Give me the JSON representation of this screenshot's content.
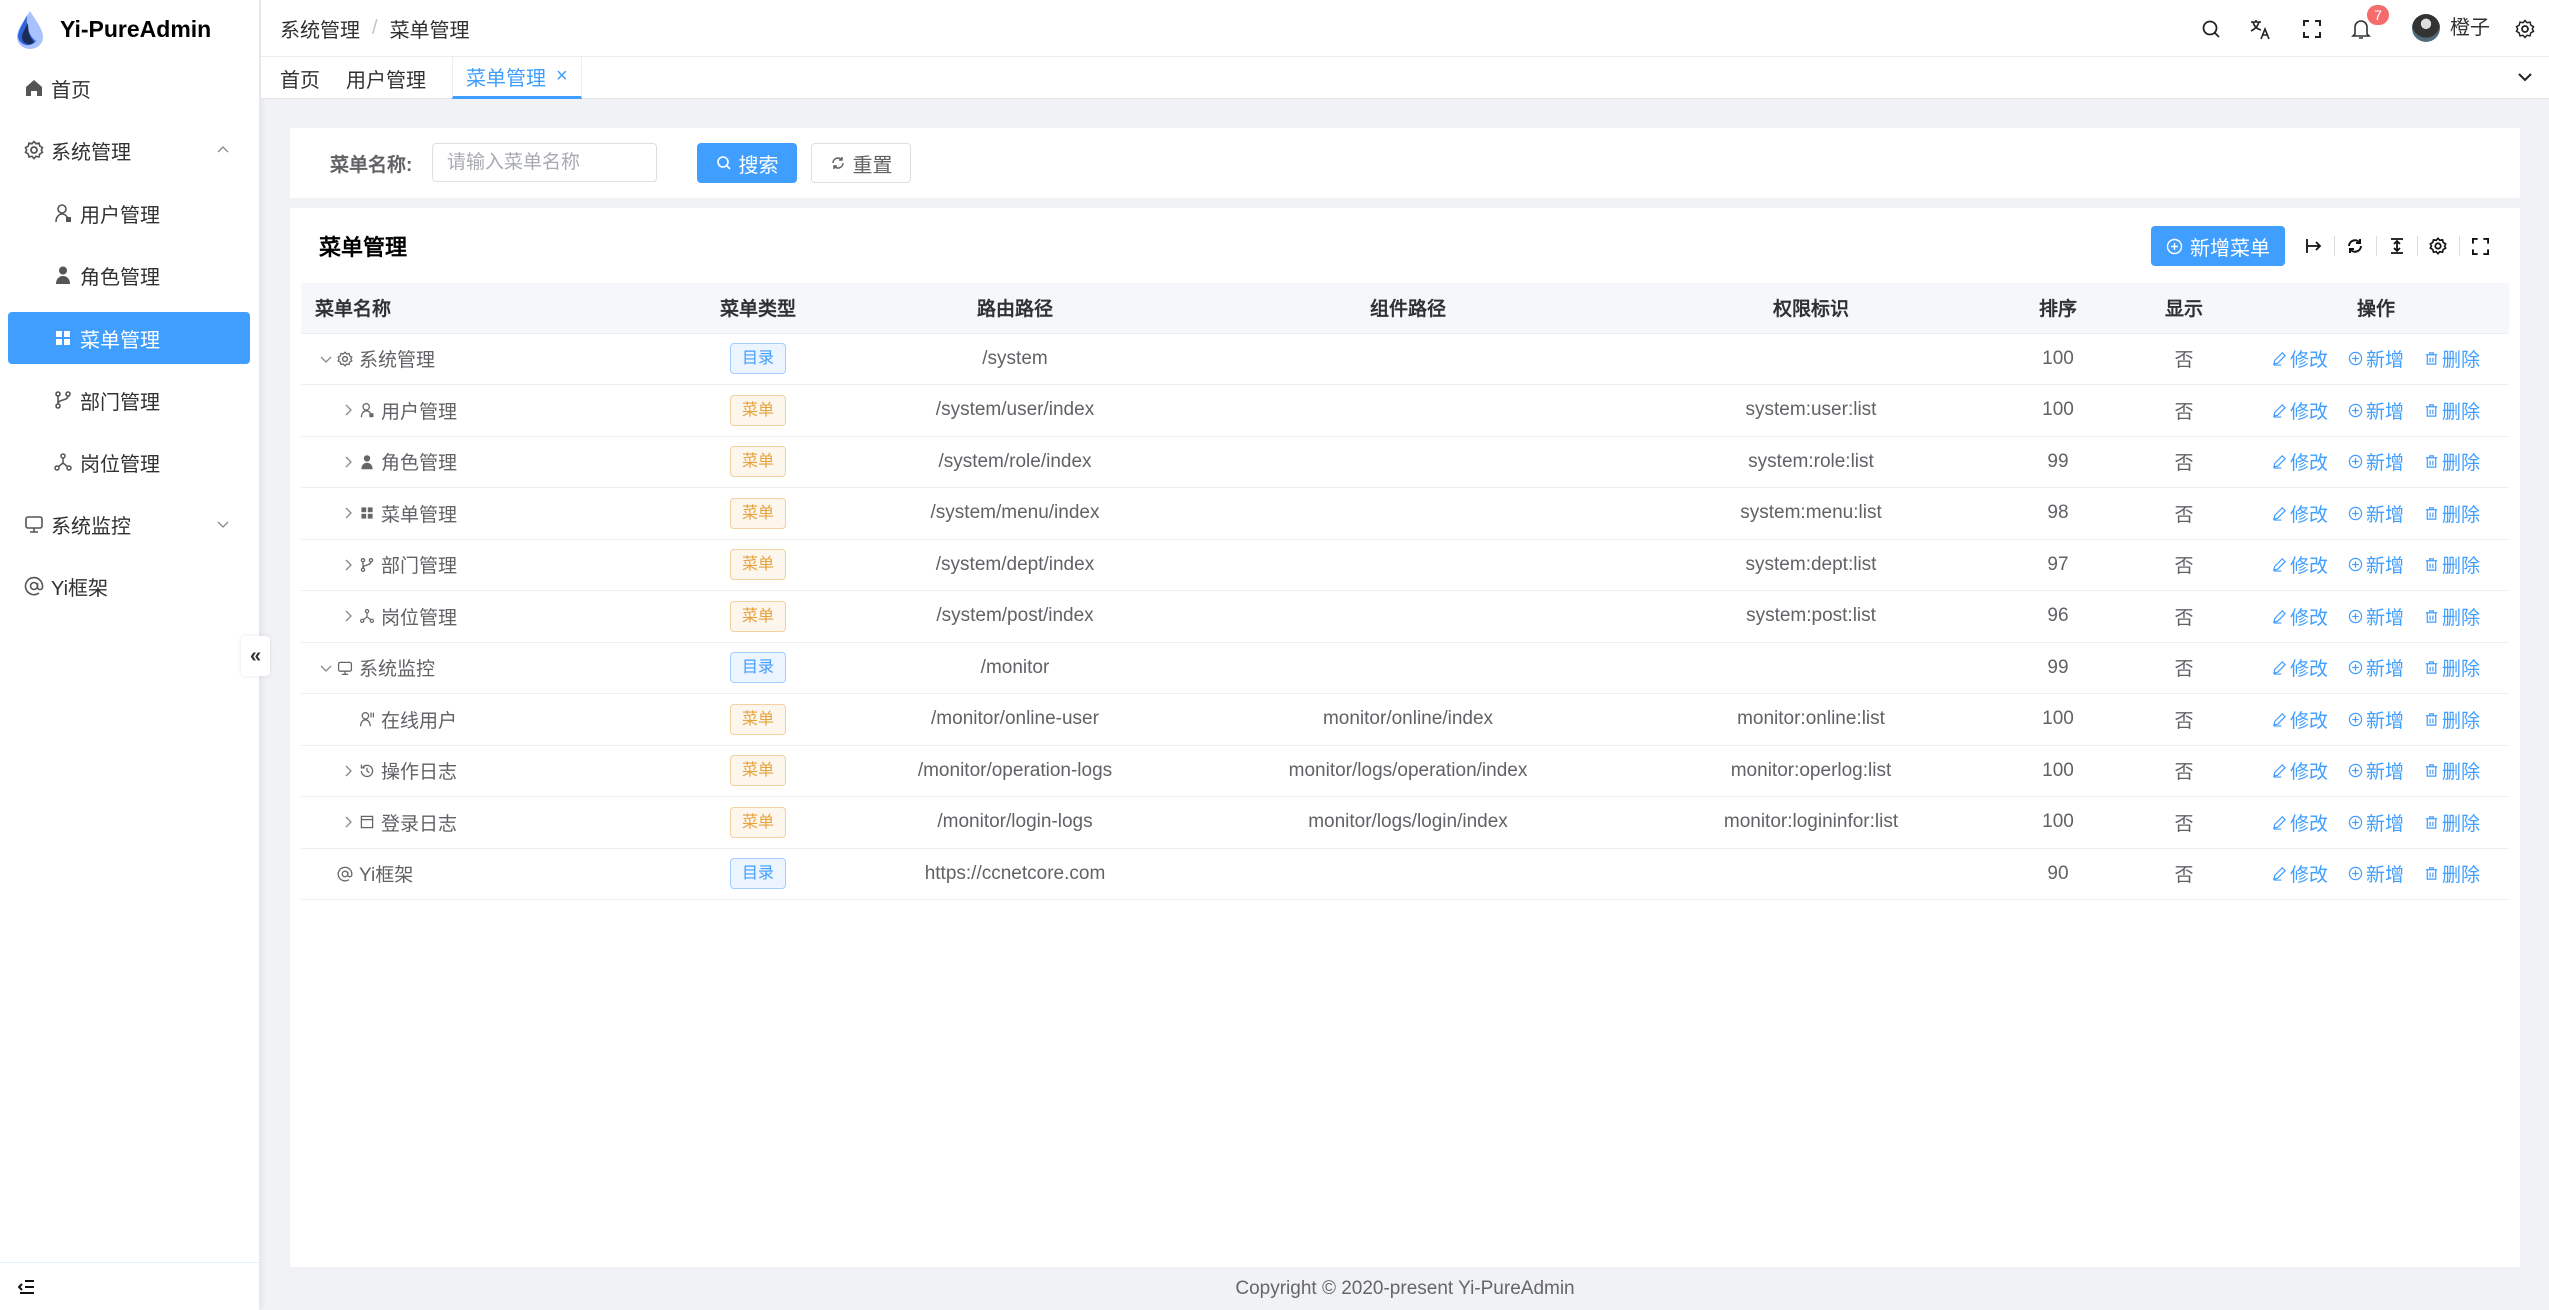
{
  "app": {
    "title": "Yi-PureAdmin",
    "accent": "#409eff"
  },
  "sidebar": {
    "items": [
      {
        "label": "首页",
        "icon": "home-icon",
        "level": 0
      },
      {
        "label": "系统管理",
        "icon": "gear-icon",
        "level": 0,
        "expanded": true
      },
      {
        "label": "用户管理",
        "icon": "user-icon",
        "level": 1
      },
      {
        "label": "角色管理",
        "icon": "role-icon",
        "level": 1
      },
      {
        "label": "菜单管理",
        "icon": "grid-icon",
        "level": 1,
        "active": true
      },
      {
        "label": "部门管理",
        "icon": "branch-icon",
        "level": 1
      },
      {
        "label": "岗位管理",
        "icon": "network-icon",
        "level": 1
      },
      {
        "label": "系统监控",
        "icon": "monitor-icon",
        "level": 0,
        "expanded": false
      },
      {
        "label": "Yi框架",
        "icon": "at-icon",
        "level": 0
      }
    ],
    "collapse_label": "«"
  },
  "header": {
    "breadcrumb": [
      "系统管理",
      "菜单管理"
    ],
    "breadcrumb_sep": "/",
    "notification_count": "7",
    "username": "橙子"
  },
  "tabs": [
    {
      "label": "首页"
    },
    {
      "label": "用户管理"
    },
    {
      "label": "菜单管理",
      "active": true,
      "close": "×"
    }
  ],
  "search": {
    "label": "菜单名称:",
    "placeholder": "请输入菜单名称",
    "value": "",
    "search_label": "搜索",
    "reset_label": "重置"
  },
  "table_card": {
    "title": "菜单管理",
    "add_label": "新增菜单"
  },
  "table": {
    "columns": [
      "菜单名称",
      "菜单类型",
      "路由路径",
      "组件路径",
      "权限标识",
      "排序",
      "显示",
      "操作"
    ],
    "actions": {
      "edit": "修改",
      "add": "新增",
      "delete": "删除"
    },
    "rows": [
      {
        "name": "系统管理",
        "icon": "gear-icon",
        "level": 0,
        "arrow": "down",
        "type": "目录",
        "kind": "dir",
        "path": "/system",
        "component": "",
        "perm": "",
        "sort": "100",
        "show": "否"
      },
      {
        "name": "用户管理",
        "icon": "user-icon",
        "level": 1,
        "arrow": "right",
        "type": "菜单",
        "kind": "menu",
        "path": "/system/user/index",
        "component": "",
        "perm": "system:user:list",
        "sort": "100",
        "show": "否"
      },
      {
        "name": "角色管理",
        "icon": "role-icon",
        "level": 1,
        "arrow": "right",
        "type": "菜单",
        "kind": "menu",
        "path": "/system/role/index",
        "component": "",
        "perm": "system:role:list",
        "sort": "99",
        "show": "否"
      },
      {
        "name": "菜单管理",
        "icon": "grid-icon",
        "level": 1,
        "arrow": "right",
        "type": "菜单",
        "kind": "menu",
        "path": "/system/menu/index",
        "component": "",
        "perm": "system:menu:list",
        "sort": "98",
        "show": "否"
      },
      {
        "name": "部门管理",
        "icon": "branch-icon",
        "level": 1,
        "arrow": "right",
        "type": "菜单",
        "kind": "menu",
        "path": "/system/dept/index",
        "component": "",
        "perm": "system:dept:list",
        "sort": "97",
        "show": "否"
      },
      {
        "name": "岗位管理",
        "icon": "network-icon",
        "level": 1,
        "arrow": "right",
        "type": "菜单",
        "kind": "menu",
        "path": "/system/post/index",
        "component": "",
        "perm": "system:post:list",
        "sort": "96",
        "show": "否"
      },
      {
        "name": "系统监控",
        "icon": "monitor-icon",
        "level": 0,
        "arrow": "down",
        "type": "目录",
        "kind": "dir",
        "path": "/monitor",
        "component": "",
        "perm": "",
        "sort": "99",
        "show": "否"
      },
      {
        "name": "在线用户",
        "icon": "online-user-icon",
        "level": 1,
        "arrow": "",
        "type": "菜单",
        "kind": "menu",
        "path": "/monitor/online-user",
        "component": "monitor/online/index",
        "perm": "monitor:online:list",
        "sort": "100",
        "show": "否"
      },
      {
        "name": "操作日志",
        "icon": "history-icon",
        "level": 1,
        "arrow": "right",
        "type": "菜单",
        "kind": "menu",
        "path": "/monitor/operation-logs",
        "component": "monitor/logs/operation/index",
        "perm": "monitor:operlog:list",
        "sort": "100",
        "show": "否"
      },
      {
        "name": "登录日志",
        "icon": "calendar-icon",
        "level": 1,
        "arrow": "right",
        "type": "菜单",
        "kind": "menu",
        "path": "/monitor/login-logs",
        "component": "monitor/logs/login/index",
        "perm": "monitor:logininfor:list",
        "sort": "100",
        "show": "否"
      },
      {
        "name": "Yi框架",
        "icon": "at-icon",
        "level": 0,
        "arrow": "",
        "type": "目录",
        "kind": "dir",
        "path": "https://ccnetcore.com",
        "component": "",
        "perm": "",
        "sort": "90",
        "show": "否"
      }
    ]
  },
  "footer": {
    "text": "Copyright © 2020-present Yi-PureAdmin"
  }
}
